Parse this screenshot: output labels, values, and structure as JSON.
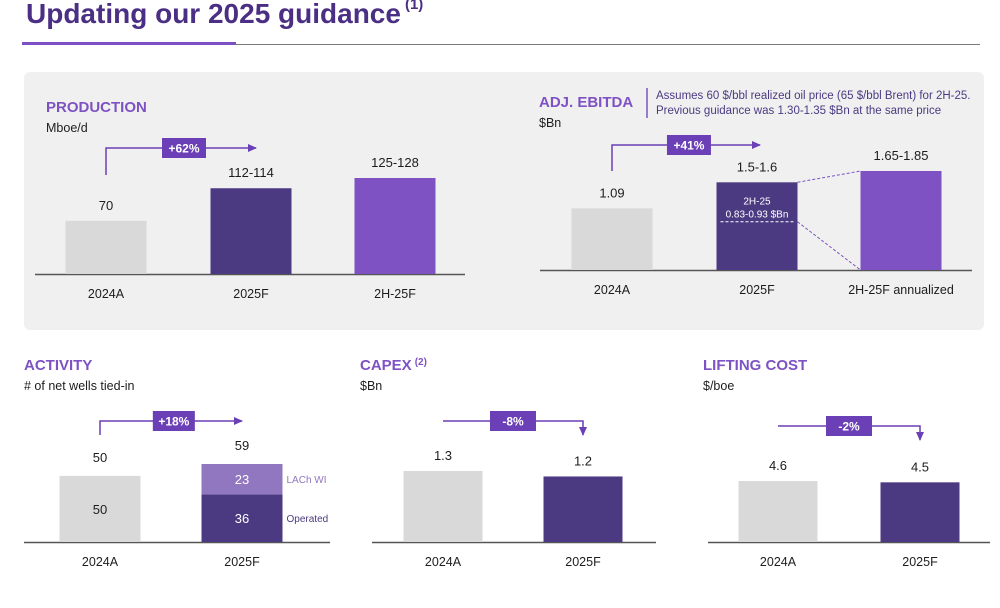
{
  "header": {
    "title": "Updating our 2025 guidance",
    "footnote_mark": "(1)"
  },
  "colors": {
    "gray": "#d9d9d9",
    "dark_purple": "#4b3a82",
    "purple": "#7e52c3",
    "light_purple": "#9077c0",
    "accent": "#6b3fb5"
  },
  "note": {
    "line1": "Assumes 60 $/bbl realized oil price (65 $/bbl Brent) for 2H-25.",
    "line2": "Previous guidance was 1.30-1.35 $Bn at the same price"
  },
  "chart_data": [
    {
      "id": "production",
      "type": "bar",
      "title": "PRODUCTION",
      "title_sup": "",
      "ylabel": "Mboe/d",
      "categories": [
        "2024A",
        "2025F",
        "2H-25F"
      ],
      "values": [
        70,
        113,
        126.5
      ],
      "value_labels": [
        "70",
        "112-114",
        "125-128"
      ],
      "bar_colors": [
        "gray",
        "dark_purple",
        "purple"
      ],
      "ylim": [
        0,
        126.5
      ],
      "arrow": {
        "label": "+62%",
        "direction": "up"
      }
    },
    {
      "id": "ebitda",
      "type": "bar",
      "title": "ADJ. EBITDA",
      "title_sup": "",
      "ylabel": "$Bn",
      "categories": [
        "2024A",
        "2025F",
        "2H-25F annualized"
      ],
      "values": [
        1.09,
        1.55,
        1.75
      ],
      "value_labels": [
        "1.09",
        "1.5-1.6",
        "1.65-1.85"
      ],
      "bar_colors": [
        "gray",
        "dark_purple",
        "purple"
      ],
      "ylim": [
        0,
        1.75
      ],
      "arrow": {
        "label": "+41%",
        "direction": "up"
      },
      "inner_segment": {
        "bar_index": 1,
        "value": 0.88,
        "line1": "2H-25",
        "line2": "0.83-0.93 $Bn"
      }
    },
    {
      "id": "activity",
      "type": "stacked_bar",
      "title": "ACTIVITY",
      "title_sup": "",
      "ylabel": "# of net wells tied-in",
      "categories": [
        "2024A",
        "2025F"
      ],
      "totals": [
        50,
        59
      ],
      "total_labels": [
        "50",
        "59"
      ],
      "series": [
        {
          "name": "Operated",
          "values": [
            50,
            36
          ],
          "inner_labels": [
            "50",
            "36"
          ]
        },
        {
          "name": "LACh WI",
          "values": [
            0,
            23
          ],
          "inner_labels": [
            "",
            "23"
          ]
        }
      ],
      "ylim": [
        0,
        59
      ],
      "arrow": {
        "label": "+18%",
        "direction": "up"
      }
    },
    {
      "id": "capex",
      "type": "bar",
      "title": "CAPEX",
      "title_sup": "(2)",
      "ylabel": "$Bn",
      "categories": [
        "2024A",
        "2025F"
      ],
      "values": [
        1.3,
        1.2
      ],
      "value_labels": [
        "1.3",
        "1.2"
      ],
      "bar_colors": [
        "gray",
        "dark_purple"
      ],
      "ylim": [
        0,
        1.3
      ],
      "arrow": {
        "label": "-8%",
        "direction": "down"
      }
    },
    {
      "id": "lifting",
      "type": "bar",
      "title": "LIFTING COST",
      "title_sup": "",
      "ylabel": "$/boe",
      "categories": [
        "2024A",
        "2025F"
      ],
      "values": [
        4.6,
        4.5
      ],
      "value_labels": [
        "4.6",
        "4.5"
      ],
      "bar_colors": [
        "gray",
        "dark_purple"
      ],
      "ylim": [
        0,
        4.6
      ],
      "arrow": {
        "label": "-2%",
        "direction": "down"
      }
    }
  ]
}
